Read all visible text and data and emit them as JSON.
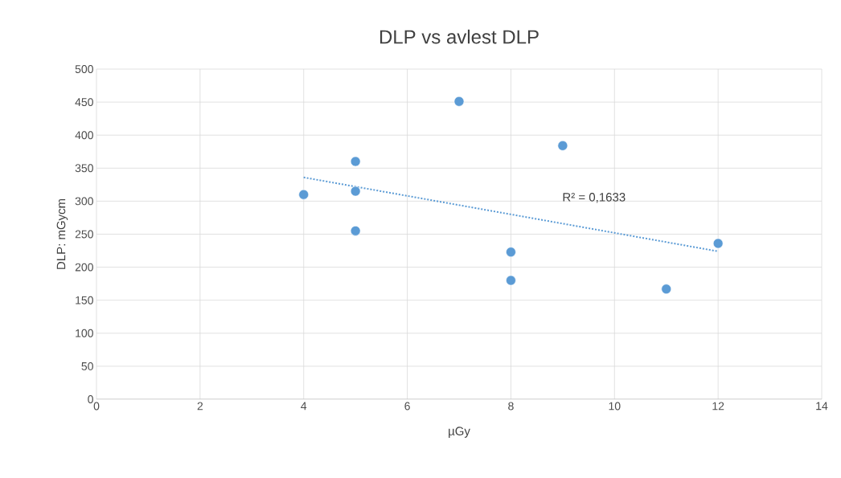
{
  "chart_data": {
    "type": "scatter",
    "title": "DLP vs avlest DLP",
    "xlabel": "µGy",
    "ylabel": "DLP: mGycm",
    "series": [
      {
        "color": "#5b9bd5",
        "marker": "circle",
        "x": [
          4,
          5,
          5,
          5,
          7,
          8,
          8,
          9,
          11,
          12
        ],
        "values": [
          310,
          360,
          315,
          255,
          451,
          223,
          180,
          384,
          167,
          236
        ]
      },
      {
        "type": "line",
        "color": "#5b9bd5",
        "marker": "none",
        "line_style": "dotted",
        "x": [
          4,
          12
        ],
        "values": [
          336,
          224
        ]
      }
    ],
    "annotations": [
      "R² = 0,1633"
    ],
    "xlim": [
      0,
      14
    ],
    "ylim": [
      0,
      500
    ],
    "xticks": [
      0,
      2,
      4,
      6,
      8,
      10,
      12,
      14
    ],
    "yticks": [
      0,
      50,
      100,
      150,
      200,
      250,
      300,
      350,
      400,
      450,
      500
    ],
    "grid": true
  }
}
